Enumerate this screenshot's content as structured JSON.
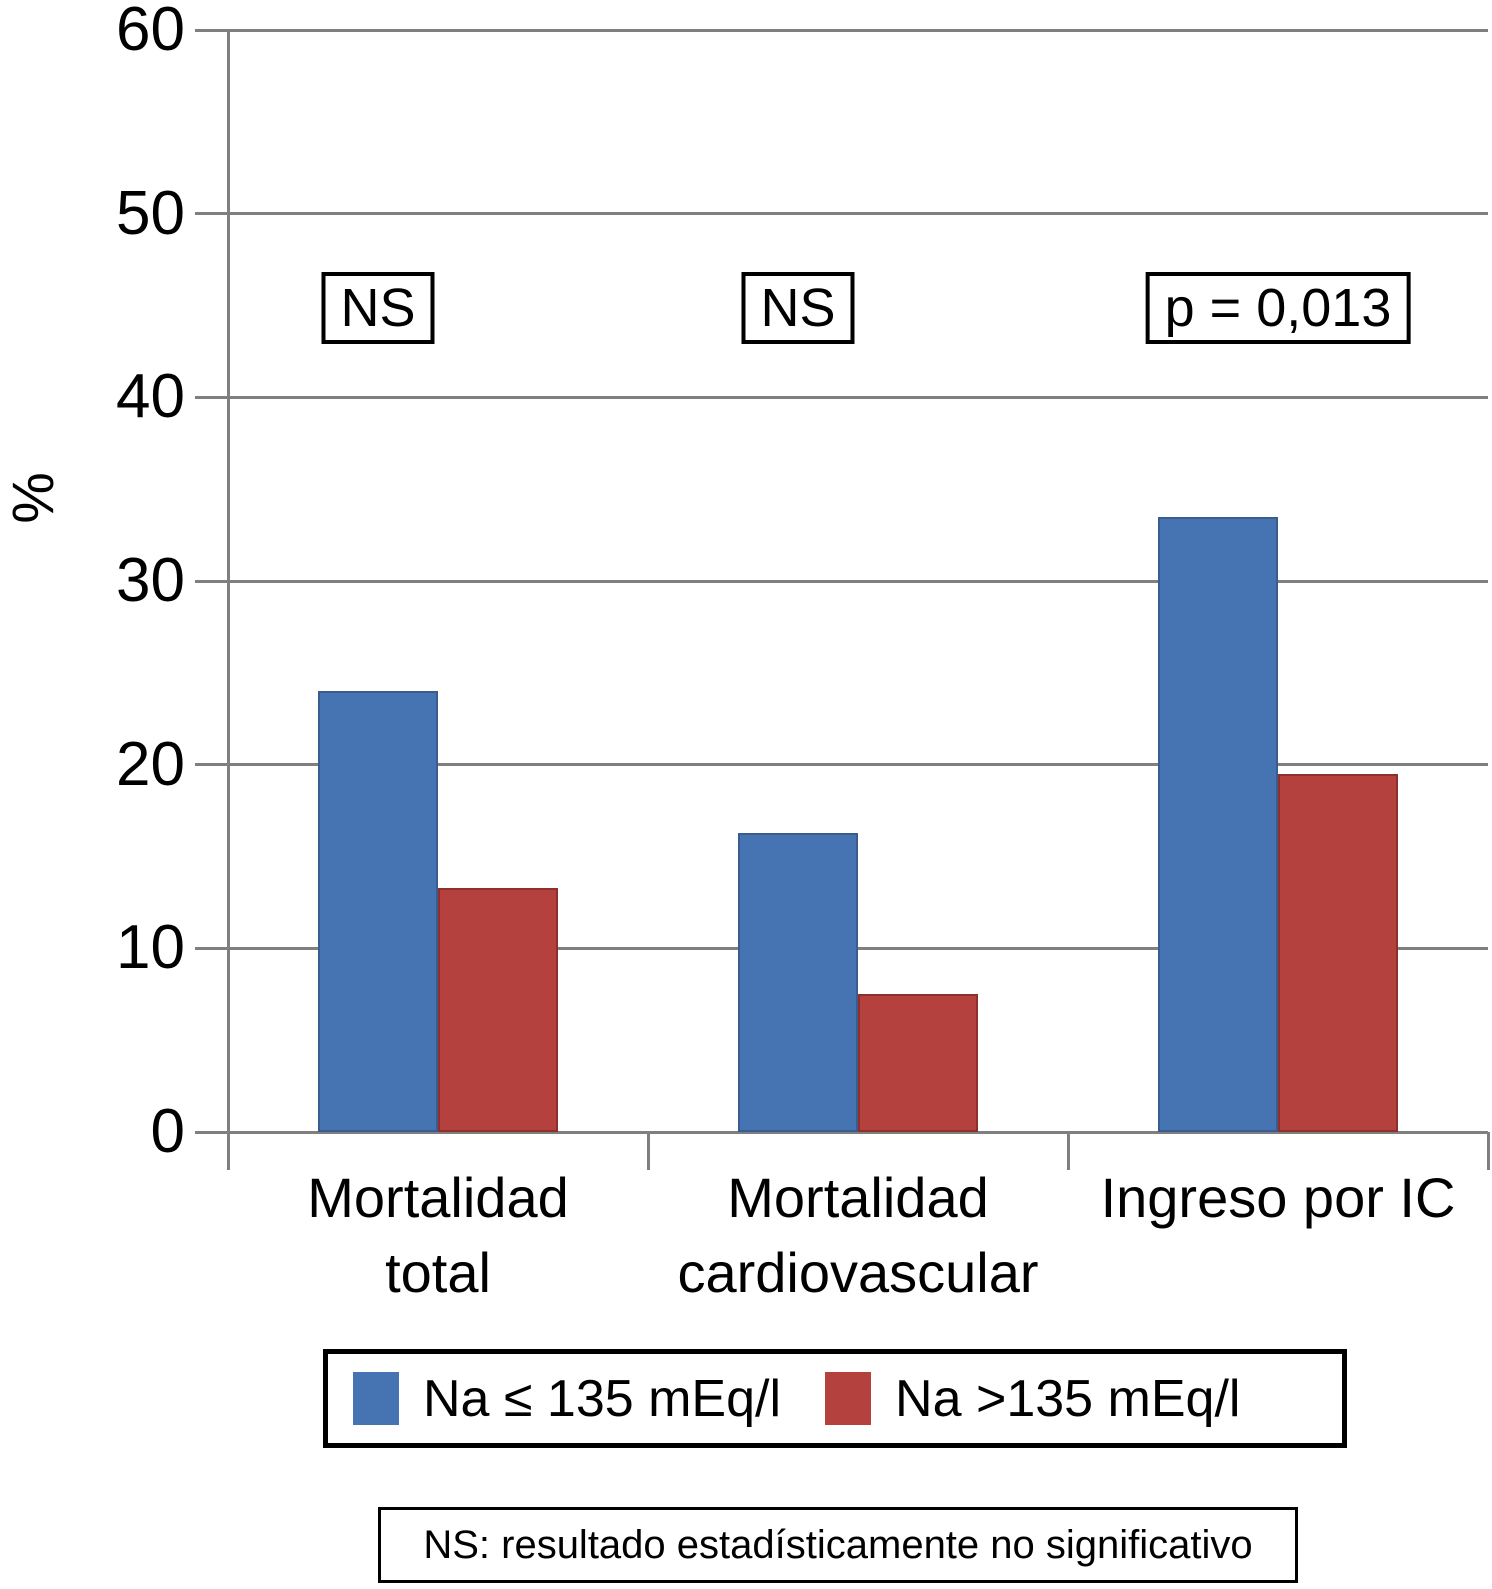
{
  "chart_data": {
    "type": "bar",
    "title": "",
    "ylabel": "%",
    "ylim": [
      0,
      60
    ],
    "y_ticks": [
      0,
      10,
      20,
      30,
      40,
      50,
      60
    ],
    "grid": true,
    "legend_position": "bottom",
    "categories": [
      "Mortalidad\ntotal",
      "Mortalidad\ncardiovascular",
      "Ingreso por IC"
    ],
    "series": [
      {
        "name": "Na ≤ 135 mEq/l",
        "color": "#4673B2",
        "border_color": "#3a5c8e",
        "values": [
          24.0,
          16.3,
          33.5
        ]
      },
      {
        "name": "Na >135 mEq/l",
        "color": "#B5413F",
        "border_color": "#8e2f2c",
        "values": [
          13.3,
          7.5,
          19.5
        ]
      }
    ],
    "annotations": [
      {
        "label": "NS",
        "category_index": 0
      },
      {
        "label": "NS",
        "category_index": 1
      },
      {
        "label": "p = 0,013",
        "category_index": 2
      }
    ],
    "footnote": "NS: resultado estadísticamente no significativo",
    "colors": {
      "gridline": "#7f7f7f",
      "axis": "#7f7f7f",
      "text": "#000000",
      "background": "#ffffff",
      "box_border": "#000000"
    }
  }
}
